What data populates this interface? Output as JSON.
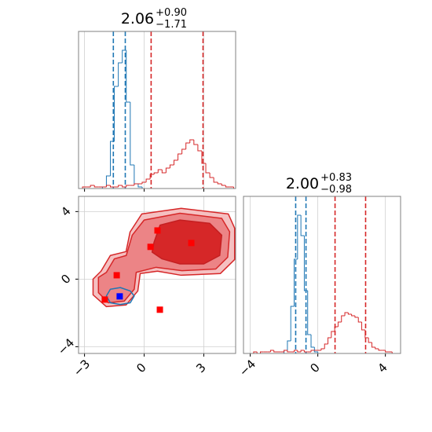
{
  "chart_data": [
    {
      "type": "histogram",
      "title": {
        "main": "2.06",
        "upper": "+0.90",
        "lower": "−1.71"
      },
      "bins": [
        -3.3,
        -3.1,
        -2.9,
        -2.7,
        -2.5,
        -2.3,
        -2.1,
        -1.9,
        -1.7,
        -1.5,
        -1.3,
        -1.1,
        -0.9,
        -0.7,
        -0.5,
        -0.3,
        -0.1,
        0.1,
        0.3,
        0.5,
        0.7,
        0.9,
        1.1,
        1.3,
        1.5,
        1.7,
        1.9,
        2.1,
        2.3,
        2.5,
        2.7,
        2.9,
        3.1,
        3.3,
        3.5,
        3.7,
        3.9,
        4.1,
        4.3,
        4.5,
        4.7
      ],
      "series": [
        {
          "color": "#1f77b4",
          "quantiles": [
            -1.55,
            -0.95
          ],
          "values": [
            0,
            0,
            0,
            0,
            0,
            0,
            0.01,
            0.08,
            0.3,
            0.65,
            0.8,
            0.88,
            0.55,
            0.15,
            0.03,
            0.01,
            0,
            0,
            0,
            0,
            0,
            0,
            0,
            0,
            0,
            0,
            0,
            0,
            0,
            0,
            0,
            0,
            0,
            0,
            0,
            0,
            0,
            0,
            0,
            0
          ]
        },
        {
          "color": "#d62728",
          "quantiles": [
            0.35,
            2.96
          ],
          "values": [
            0,
            0.01,
            0.01,
            0.02,
            0.01,
            0.01,
            0.01,
            0.02,
            0.01,
            0.01,
            0.02,
            0.01,
            0.02,
            0.02,
            0.03,
            0.03,
            0.04,
            0.06,
            0.09,
            0.1,
            0.12,
            0.1,
            0.13,
            0.15,
            0.18,
            0.22,
            0.25,
            0.29,
            0.31,
            0.28,
            0.24,
            0.16,
            0.1,
            0.07,
            0.04,
            0.03,
            0.02,
            0.01,
            0.01,
            0
          ]
        }
      ],
      "xlim": [
        -3.3,
        4.6
      ],
      "xticks": [
        -3,
        0,
        3
      ],
      "ylim": [
        0,
        1
      ],
      "grid": true
    },
    {
      "type": "contour",
      "xlim": [
        -3.3,
        4.6
      ],
      "ylim": [
        -4.4,
        4.9
      ],
      "xticks": [
        {
          "value": -3,
          "label": "−3"
        },
        0,
        3
      ],
      "yticks": [
        {
          "value": -4,
          "label": "−4"
        },
        0,
        4
      ],
      "grid": true,
      "contours": [
        {
          "fill": "#f5c0c1",
          "stroke": "#d62728",
          "x": [
            -2.17,
            -1.7,
            -0.91,
            -0.71,
            -0.12,
            1.86,
            4.23,
            4.55,
            4.55,
            3.83,
            1.86,
            0.67,
            -0.2,
            -0.32,
            -0.91,
            -1.9,
            -2.57,
            -2.57
          ],
          "y": [
            0.47,
            1.4,
            1.63,
            2.79,
            3.86,
            4.19,
            3.86,
            3.02,
            1.16,
            0.33,
            0.23,
            0.47,
            0.33,
            -0.7,
            -1.53,
            -1.63,
            -0.93,
            0
          ]
        },
        {
          "fill": "#ec8486",
          "stroke": "#d62728",
          "x": [
            -1.9,
            -1.5,
            -0.9,
            -0.6,
            0,
            1.8,
            3.9,
            4.3,
            4.2,
            3.6,
            1.9,
            0.6,
            -0.4,
            -0.5,
            -1,
            -1.8,
            -2.3,
            -2.3
          ],
          "y": [
            0.4,
            1.2,
            1.4,
            2.6,
            3.5,
            3.9,
            3.6,
            2.8,
            1.3,
            0.6,
            0.5,
            0.7,
            0.4,
            -0.6,
            -1.3,
            -1.4,
            -0.8,
            0.1
          ]
        },
        {
          "fill": "#d62728",
          "stroke": "#c41f21",
          "x": [
            0.5,
            0.8,
            1.8,
            3.3,
            3.9,
            3.8,
            3,
            1.8,
            0.9,
            0.4
          ],
          "y": [
            2.2,
            3.2,
            3.5,
            3.3,
            2.6,
            1.4,
            0.9,
            0.9,
            1.2,
            1.6
          ]
        },
        {
          "fill": "none",
          "stroke": "#1f77b4",
          "x": [
            -1.9,
            -1.7,
            -1.2,
            -0.7,
            -0.5,
            -0.7,
            -1.2,
            -1.7
          ],
          "y": [
            -1,
            -0.6,
            -0.5,
            -0.7,
            -1,
            -1.4,
            -1.5,
            -1.4
          ]
        }
      ],
      "points": [
        {
          "color": "#ff0000",
          "x": [
            0.32,
            0.67,
            2.37,
            -1.38,
            -1.98,
            0.79
          ],
          "y": [
            1.91,
            2.88,
            2.14,
            0.23,
            -1.21,
            -1.81
          ]
        },
        {
          "color": "#0000ff",
          "x": [
            -1.23
          ],
          "y": [
            -1.02
          ]
        }
      ]
    },
    {
      "type": "histogram",
      "title": {
        "main": "2.00",
        "upper": "+0.83",
        "lower": "−0.98"
      },
      "bins": [
        -4.4,
        -4.2,
        -4,
        -3.8,
        -3.6,
        -3.4,
        -3.2,
        -3,
        -2.8,
        -2.6,
        -2.4,
        -2.2,
        -2,
        -1.8,
        -1.6,
        -1.4,
        -1.2,
        -1,
        -0.8,
        -0.6,
        -0.4,
        -0.2,
        0,
        0.2,
        0.4,
        0.6,
        0.8,
        1,
        1.2,
        1.4,
        1.6,
        1.8,
        2,
        2.2,
        2.4,
        2.6,
        2.8,
        3,
        3.2,
        3.4,
        3.6,
        3.8,
        4,
        4.2,
        4.4,
        4.6,
        4.8
      ],
      "series": [
        {
          "color": "#1f77b4",
          "quantiles": [
            -1.31,
            -0.7
          ],
          "values": [
            0,
            0,
            0,
            0,
            0,
            0,
            0,
            0,
            0,
            0,
            0,
            0,
            0.02,
            0.08,
            0.3,
            0.6,
            0.88,
            0.75,
            0.4,
            0.12,
            0.04,
            0.01,
            0,
            0,
            0,
            0,
            0,
            0,
            0,
            0,
            0,
            0,
            0,
            0,
            0,
            0,
            0,
            0,
            0,
            0,
            0,
            0,
            0,
            0,
            0,
            0
          ]
        },
        {
          "color": "#d62728",
          "quantiles": [
            1.02,
            2.83
          ],
          "values": [
            0,
            0,
            0,
            0.01,
            0,
            0.01,
            0.01,
            0.01,
            0.02,
            0.01,
            0.01,
            0.01,
            0.02,
            0.01,
            0.01,
            0.02,
            0.01,
            0.02,
            0.01,
            0.01,
            0.02,
            0.02,
            0.02,
            0.03,
            0.06,
            0.1,
            0.14,
            0.17,
            0.2,
            0.24,
            0.26,
            0.25,
            0.24,
            0.23,
            0.2,
            0.15,
            0.1,
            0.07,
            0.04,
            0.03,
            0.02,
            0.02,
            0.01,
            0.01,
            0,
            0
          ]
        }
      ],
      "xlim": [
        -4.4,
        4.9
      ],
      "xticks": [
        {
          "value": -4,
          "label": "−4"
        },
        0,
        4
      ],
      "ylim": [
        0,
        1
      ],
      "grid": true
    }
  ]
}
